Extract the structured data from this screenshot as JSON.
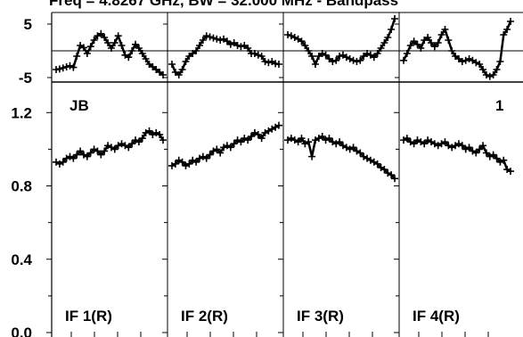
{
  "chart_data": {
    "type": "scatter",
    "title": "Freq = 4.8267 GHz, BW = 32.000 MHz - Bandpass",
    "source_label": "JB",
    "page_number": "1",
    "phase_panel": {
      "ylim": [
        -5,
        5
      ],
      "y_tick_labels": [
        "5",
        "-5"
      ],
      "y_tick_values": [
        5,
        -5
      ]
    },
    "amplitude_panel": {
      "ylim": [
        0.0,
        1.25
      ],
      "y_tick_labels": [
        "1.2",
        "0.8",
        "0.4",
        "0.0"
      ],
      "y_tick_values": [
        1.2,
        0.8,
        0.4,
        0.0
      ]
    },
    "channels": [
      0,
      1,
      2,
      3,
      4,
      5,
      6,
      7,
      8,
      9,
      10,
      11,
      12,
      13,
      14,
      15,
      16,
      17,
      18,
      19,
      20,
      21,
      22,
      23,
      24,
      25,
      26,
      27,
      28,
      29,
      30,
      31
    ],
    "series": [
      {
        "name": "IF 1(R)",
        "phase": [
          -3.5,
          -3.4,
          -3.2,
          -3.0,
          -2.8,
          -3.1,
          -1.0,
          1.0,
          0.6,
          -0.5,
          0.8,
          2.0,
          2.8,
          3.2,
          2.5,
          1.5,
          0.5,
          1.5,
          2.8,
          1.0,
          -0.8,
          -1.2,
          0.0,
          1.2,
          0.5,
          -0.5,
          -1.5,
          -2.5,
          -3.0,
          -3.5,
          -4.0,
          -4.5
        ],
        "amplitude": [
          0.93,
          0.92,
          0.93,
          0.95,
          0.96,
          0.95,
          0.97,
          0.99,
          0.97,
          0.96,
          0.98,
          1.0,
          0.99,
          0.97,
          0.99,
          1.02,
          1.01,
          1.0,
          1.02,
          1.03,
          1.02,
          1.01,
          1.03,
          1.05,
          1.04,
          1.06,
          1.09,
          1.1,
          1.08,
          1.09,
          1.08,
          1.05
        ]
      },
      {
        "name": "IF 2(R)",
        "phase": [
          -2.5,
          -4.0,
          -4.5,
          -3.5,
          -2.0,
          -1.0,
          -0.5,
          0.0,
          1.0,
          2.0,
          2.8,
          2.6,
          2.4,
          2.2,
          2.0,
          2.2,
          1.8,
          1.2,
          1.5,
          1.0,
          0.8,
          1.0,
          0.5,
          -0.5,
          -0.5,
          -0.8,
          -1.0,
          -2.0,
          -2.2,
          -2.0,
          -2.4,
          -2.5
        ],
        "amplitude": [
          0.91,
          0.92,
          0.94,
          0.93,
          0.91,
          0.92,
          0.94,
          0.93,
          0.95,
          0.96,
          0.95,
          0.97,
          0.99,
          1.0,
          0.98,
          1.01,
          1.02,
          1.01,
          1.03,
          1.05,
          1.04,
          1.06,
          1.05,
          1.07,
          1.09,
          1.08,
          1.06,
          1.09,
          1.1,
          1.11,
          1.12,
          1.13
        ]
      },
      {
        "name": "IF 3(R)",
        "phase": [
          3.0,
          2.8,
          2.5,
          2.2,
          1.8,
          1.0,
          0.0,
          -1.0,
          -2.5,
          -1.0,
          -0.5,
          -0.8,
          -1.5,
          -2.0,
          -1.8,
          -1.0,
          -0.8,
          -1.2,
          -1.5,
          -1.8,
          -2.0,
          -1.8,
          -1.0,
          -0.5,
          -0.8,
          -1.2,
          -0.5,
          0.5,
          1.5,
          2.5,
          4.0,
          6.0
        ],
        "amplitude": [
          1.05,
          1.06,
          1.05,
          1.04,
          1.06,
          1.03,
          1.04,
          0.96,
          1.05,
          1.06,
          1.07,
          1.05,
          1.06,
          1.04,
          1.03,
          1.04,
          1.02,
          1.01,
          1.0,
          1.01,
          0.99,
          0.98,
          0.96,
          0.95,
          0.94,
          0.93,
          0.92,
          0.9,
          0.89,
          0.87,
          0.86,
          0.84
        ]
      },
      {
        "name": "IF 4(R)",
        "phase": [
          -1.8,
          -0.5,
          1.0,
          1.8,
          1.2,
          0.5,
          2.0,
          2.5,
          1.5,
          0.8,
          1.5,
          3.0,
          4.0,
          2.0,
          0.0,
          -1.0,
          -1.5,
          -2.0,
          -1.8,
          -1.5,
          -1.8,
          -2.2,
          -2.5,
          -3.5,
          -4.5,
          -4.8,
          -4.5,
          -3.5,
          -2.0,
          3.0,
          4.0,
          5.5
        ],
        "amplitude": [
          1.05,
          1.06,
          1.04,
          1.03,
          1.05,
          1.04,
          1.03,
          1.05,
          1.04,
          1.03,
          1.02,
          1.03,
          1.04,
          1.02,
          1.01,
          1.02,
          1.03,
          1.02,
          1.0,
          1.01,
          0.99,
          0.98,
          1.0,
          1.02,
          0.98,
          0.96,
          0.97,
          0.95,
          0.93,
          0.94,
          0.89,
          0.88
        ]
      }
    ]
  }
}
